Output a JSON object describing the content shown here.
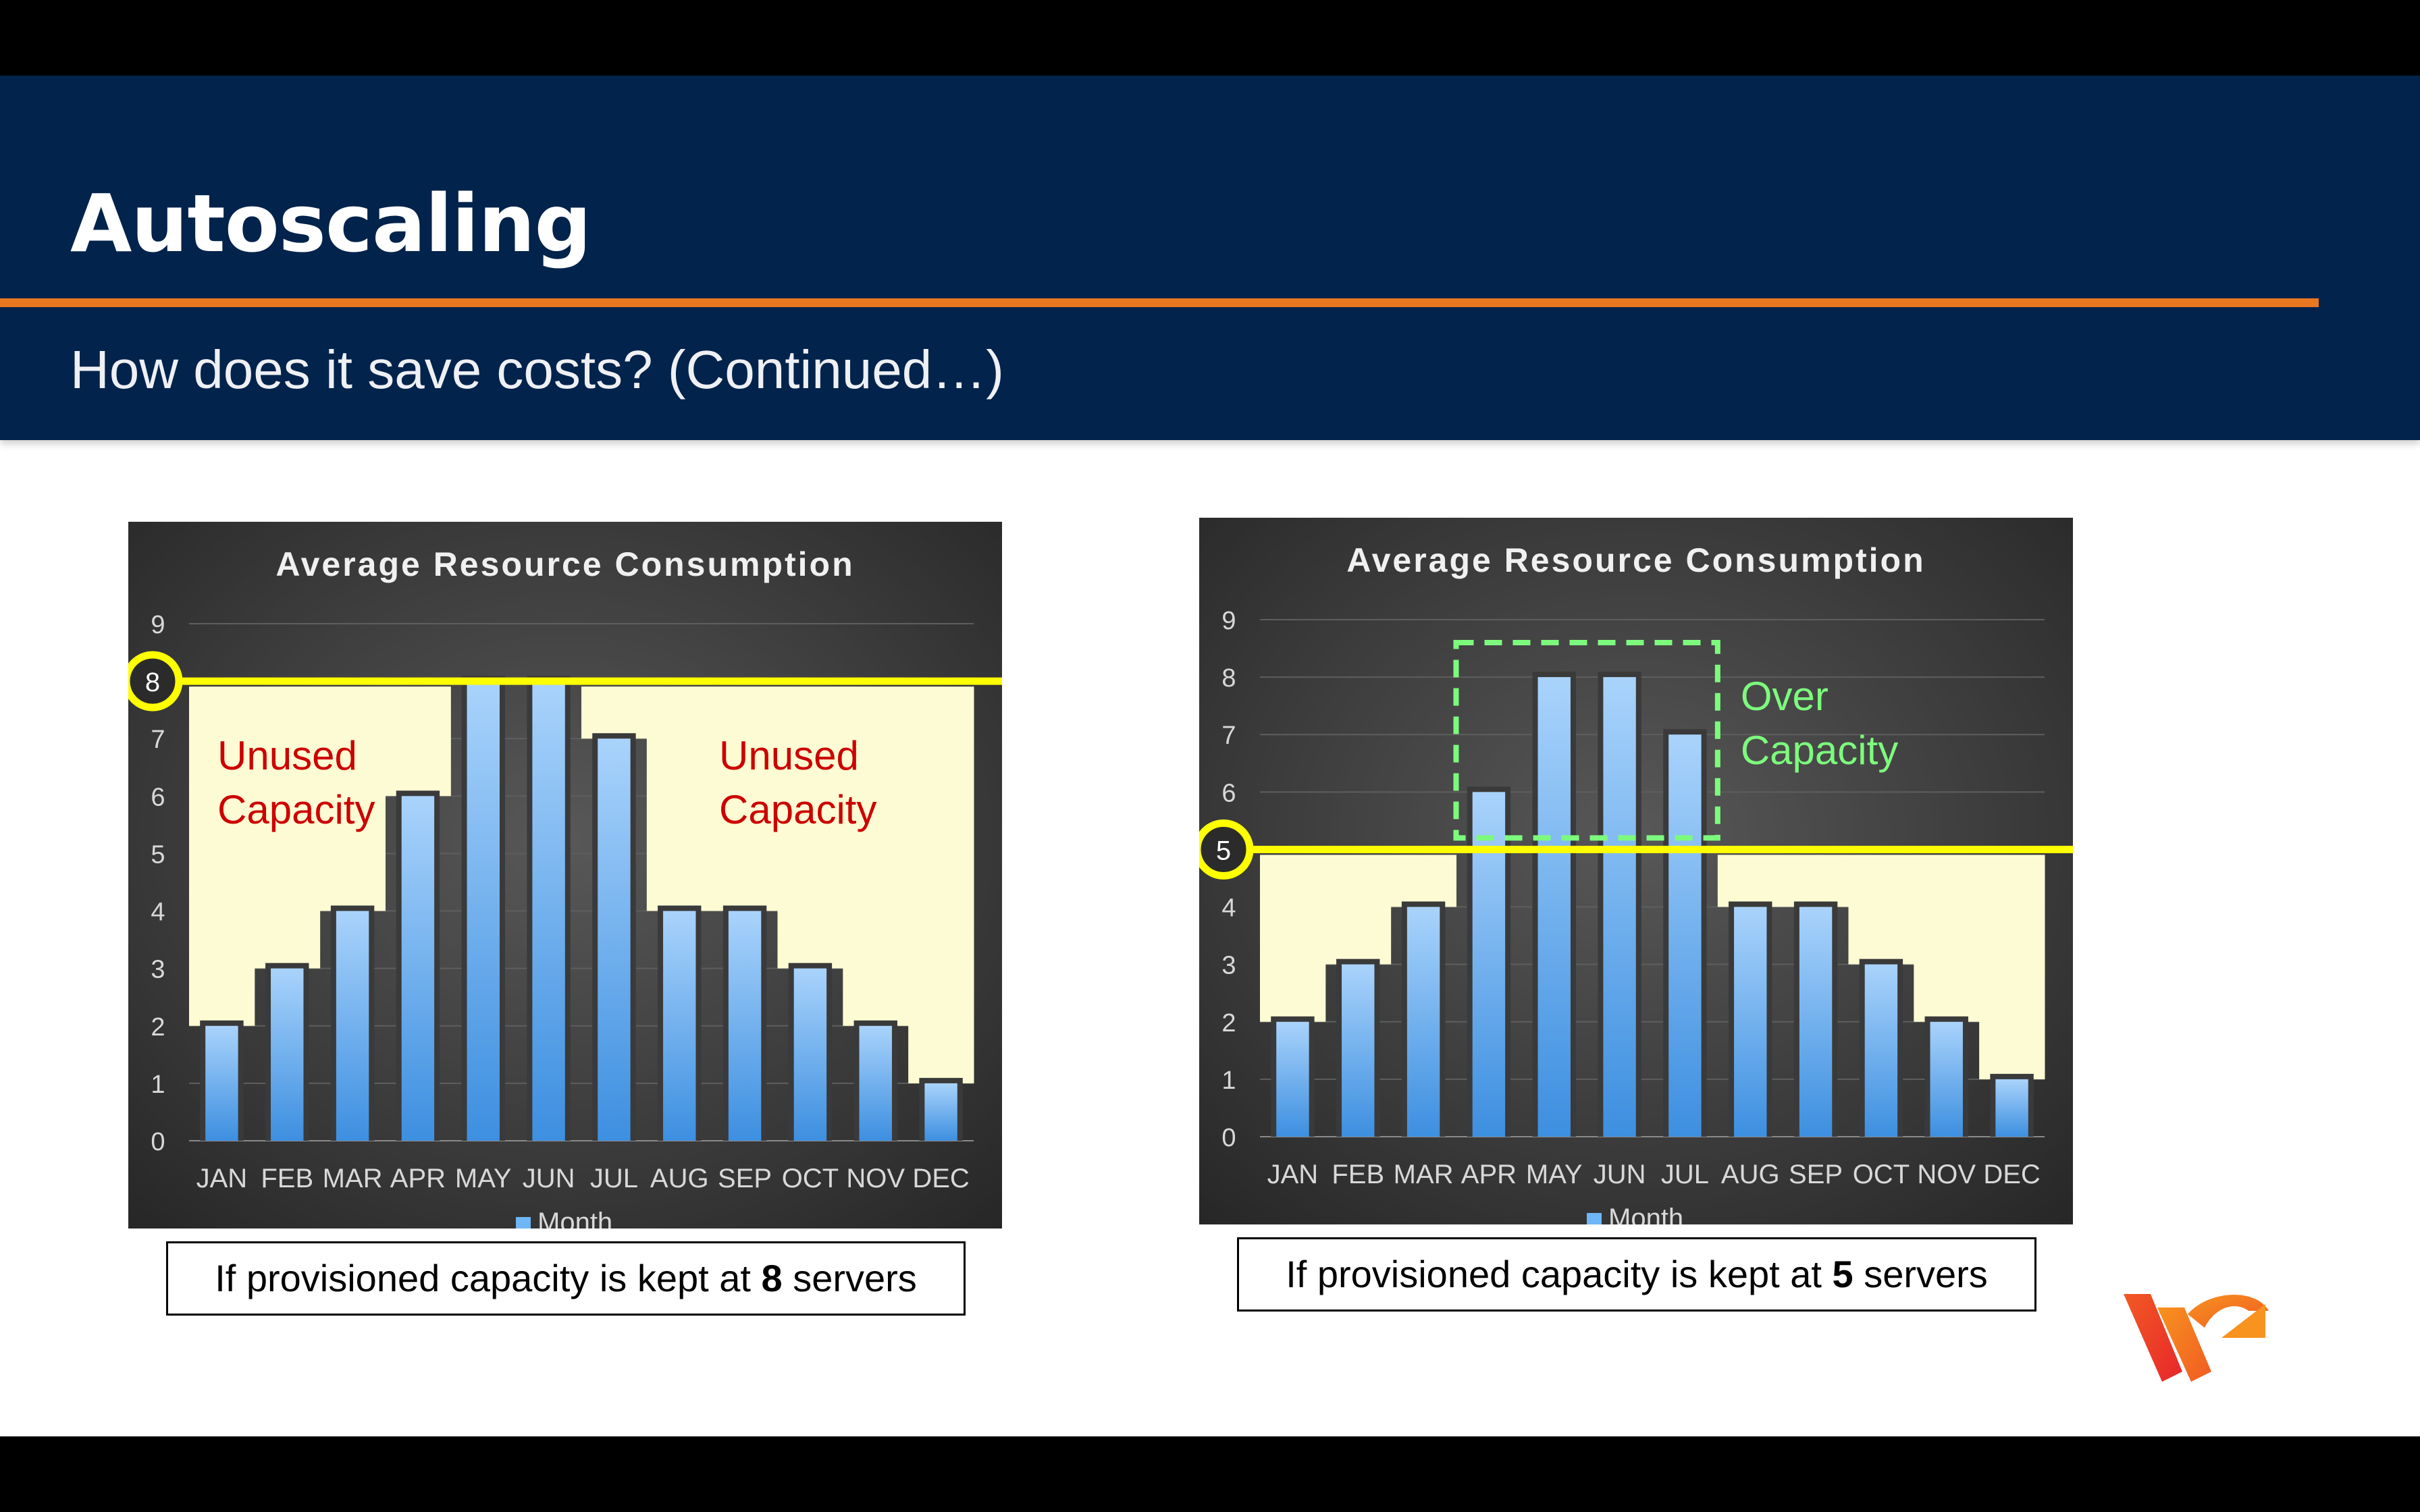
{
  "slide": {
    "title": "Autoscaling",
    "subtitle": "How does it save costs? (Continued…)"
  },
  "colors": {
    "header_bg": "#02234b",
    "accent_rule": "#e87722",
    "bar_top": "#a9d3fb",
    "bar_bottom": "#3d8fe0",
    "unused_fill": "#fdfbd3",
    "capacity_line": "#ffff00",
    "unused_text": "#cc0000",
    "over_text": "#7dfa7d"
  },
  "chart_data": [
    {
      "type": "bar",
      "title": "Average Resource Consumption",
      "categories": [
        "JAN",
        "FEB",
        "MAR",
        "APR",
        "MAY",
        "JUN",
        "JUL",
        "AUG",
        "SEP",
        "OCT",
        "NOV",
        "DEC"
      ],
      "series": [
        {
          "name": "Month",
          "values": [
            2,
            3,
            4,
            6,
            8,
            8,
            7,
            4,
            4,
            3,
            2,
            1
          ]
        }
      ],
      "ylim": [
        0,
        9
      ],
      "yticks": [
        0,
        1,
        2,
        3,
        4,
        5,
        6,
        7,
        8,
        9
      ],
      "grid": true,
      "legend": "bottom",
      "capacity": 8,
      "capacity_label": "8",
      "annotations": [
        {
          "text_lines": [
            "Unused",
            "Capacity"
          ],
          "side": "left"
        },
        {
          "text_lines": [
            "Unused",
            "Capacity"
          ],
          "side": "right"
        }
      ]
    },
    {
      "type": "bar",
      "title": "Average Resource Consumption",
      "categories": [
        "JAN",
        "FEB",
        "MAR",
        "APR",
        "MAY",
        "JUN",
        "JUL",
        "AUG",
        "SEP",
        "OCT",
        "NOV",
        "DEC"
      ],
      "series": [
        {
          "name": "Month",
          "values": [
            2,
            3,
            4,
            6,
            8,
            8,
            7,
            4,
            4,
            3,
            2,
            1
          ]
        }
      ],
      "ylim": [
        0,
        9
      ],
      "yticks": [
        0,
        1,
        2,
        3,
        4,
        5,
        6,
        7,
        8,
        9
      ],
      "grid": true,
      "legend": "bottom",
      "capacity": 5,
      "capacity_label": "5",
      "annotations": [
        {
          "text_lines": [
            "Over",
            "Capacity"
          ],
          "side": "over"
        }
      ]
    }
  ],
  "captions": [
    {
      "prefix": "If provisioned capacity is kept at ",
      "number": "8",
      "suffix": " servers"
    },
    {
      "prefix": "If provisioned capacity is kept at ",
      "number": "5",
      "suffix": " servers"
    }
  ],
  "logo": {
    "icon": "brand-logo-icon"
  }
}
